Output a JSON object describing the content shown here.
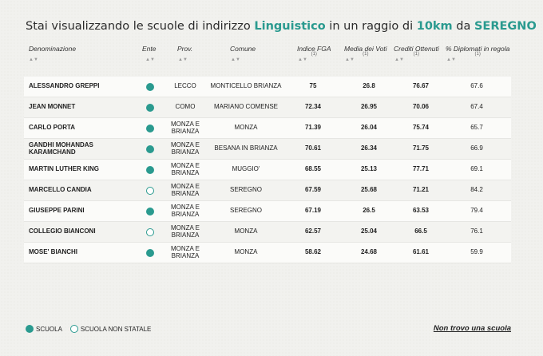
{
  "title": {
    "prefix": "Stai visualizzando le scuole di indirizzo ",
    "indirizzo": "Linguistico",
    "middle": " in un raggio di ",
    "raggio": "10km",
    "da": " da ",
    "comune": "SEREGNO"
  },
  "columns": {
    "denominazione": "Denominazione",
    "ente": "Ente",
    "prov": "Prov.",
    "comune": "Comune",
    "fga": "Indice FGA",
    "fga_note": "(1)",
    "media": "Media dei Voti",
    "media_note": "(1)",
    "crediti": "Crediti Ottenuti",
    "crediti_note": "(1)",
    "diplomati": "% Diplomati in regola",
    "diplomati_note": "(1)",
    "sort_icon": "▲▼"
  },
  "rows": [
    {
      "name": "ALESSANDRO GREPPI",
      "statale": true,
      "prov": "LECCO",
      "comune": "MONTICELLO BRIANZA",
      "fga": "75",
      "media": "26.8",
      "crediti": "76.67",
      "diplomati": "67.6"
    },
    {
      "name": "JEAN MONNET",
      "statale": true,
      "prov": "COMO",
      "comune": "MARIANO COMENSE",
      "fga": "72.34",
      "media": "26.95",
      "crediti": "70.06",
      "diplomati": "67.4"
    },
    {
      "name": "CARLO PORTA",
      "statale": true,
      "prov": "MONZA E BRIANZA",
      "comune": "MONZA",
      "fga": "71.39",
      "media": "26.04",
      "crediti": "75.74",
      "diplomati": "65.7"
    },
    {
      "name": "GANDHI MOHANDAS KARAMCHAND",
      "statale": true,
      "prov": "MONZA E BRIANZA",
      "comune": "BESANA IN BRIANZA",
      "fga": "70.61",
      "media": "26.34",
      "crediti": "71.75",
      "diplomati": "66.9"
    },
    {
      "name": "MARTIN LUTHER KING",
      "statale": true,
      "prov": "MONZA E BRIANZA",
      "comune": "MUGGIO'",
      "fga": "68.55",
      "media": "25.13",
      "crediti": "77.71",
      "diplomati": "69.1"
    },
    {
      "name": "MARCELLO CANDIA",
      "statale": false,
      "prov": "MONZA E BRIANZA",
      "comune": "SEREGNO",
      "fga": "67.59",
      "media": "25.68",
      "crediti": "71.21",
      "diplomati": "84.2"
    },
    {
      "name": "GIUSEPPE PARINI",
      "statale": true,
      "prov": "MONZA E BRIANZA",
      "comune": "SEREGNO",
      "fga": "67.19",
      "media": "26.5",
      "crediti": "63.53",
      "diplomati": "79.4"
    },
    {
      "name": "COLLEGIO BIANCONI",
      "statale": false,
      "prov": "MONZA E BRIANZA",
      "comune": "MONZA",
      "fga": "62.57",
      "media": "25.04",
      "crediti": "66.5",
      "diplomati": "76.1"
    },
    {
      "name": "MOSE' BIANCHI",
      "statale": true,
      "prov": "MONZA E BRIANZA",
      "comune": "MONZA",
      "fga": "58.62",
      "media": "24.68",
      "crediti": "61.61",
      "diplomati": "59.9"
    }
  ],
  "legend": {
    "scuola": "SCUOLA",
    "non_statale": "SCUOLA NON STATALE"
  },
  "link": {
    "not_found": "Non trovo una scuola"
  },
  "colors": {
    "accent": "#2a9a8f"
  }
}
